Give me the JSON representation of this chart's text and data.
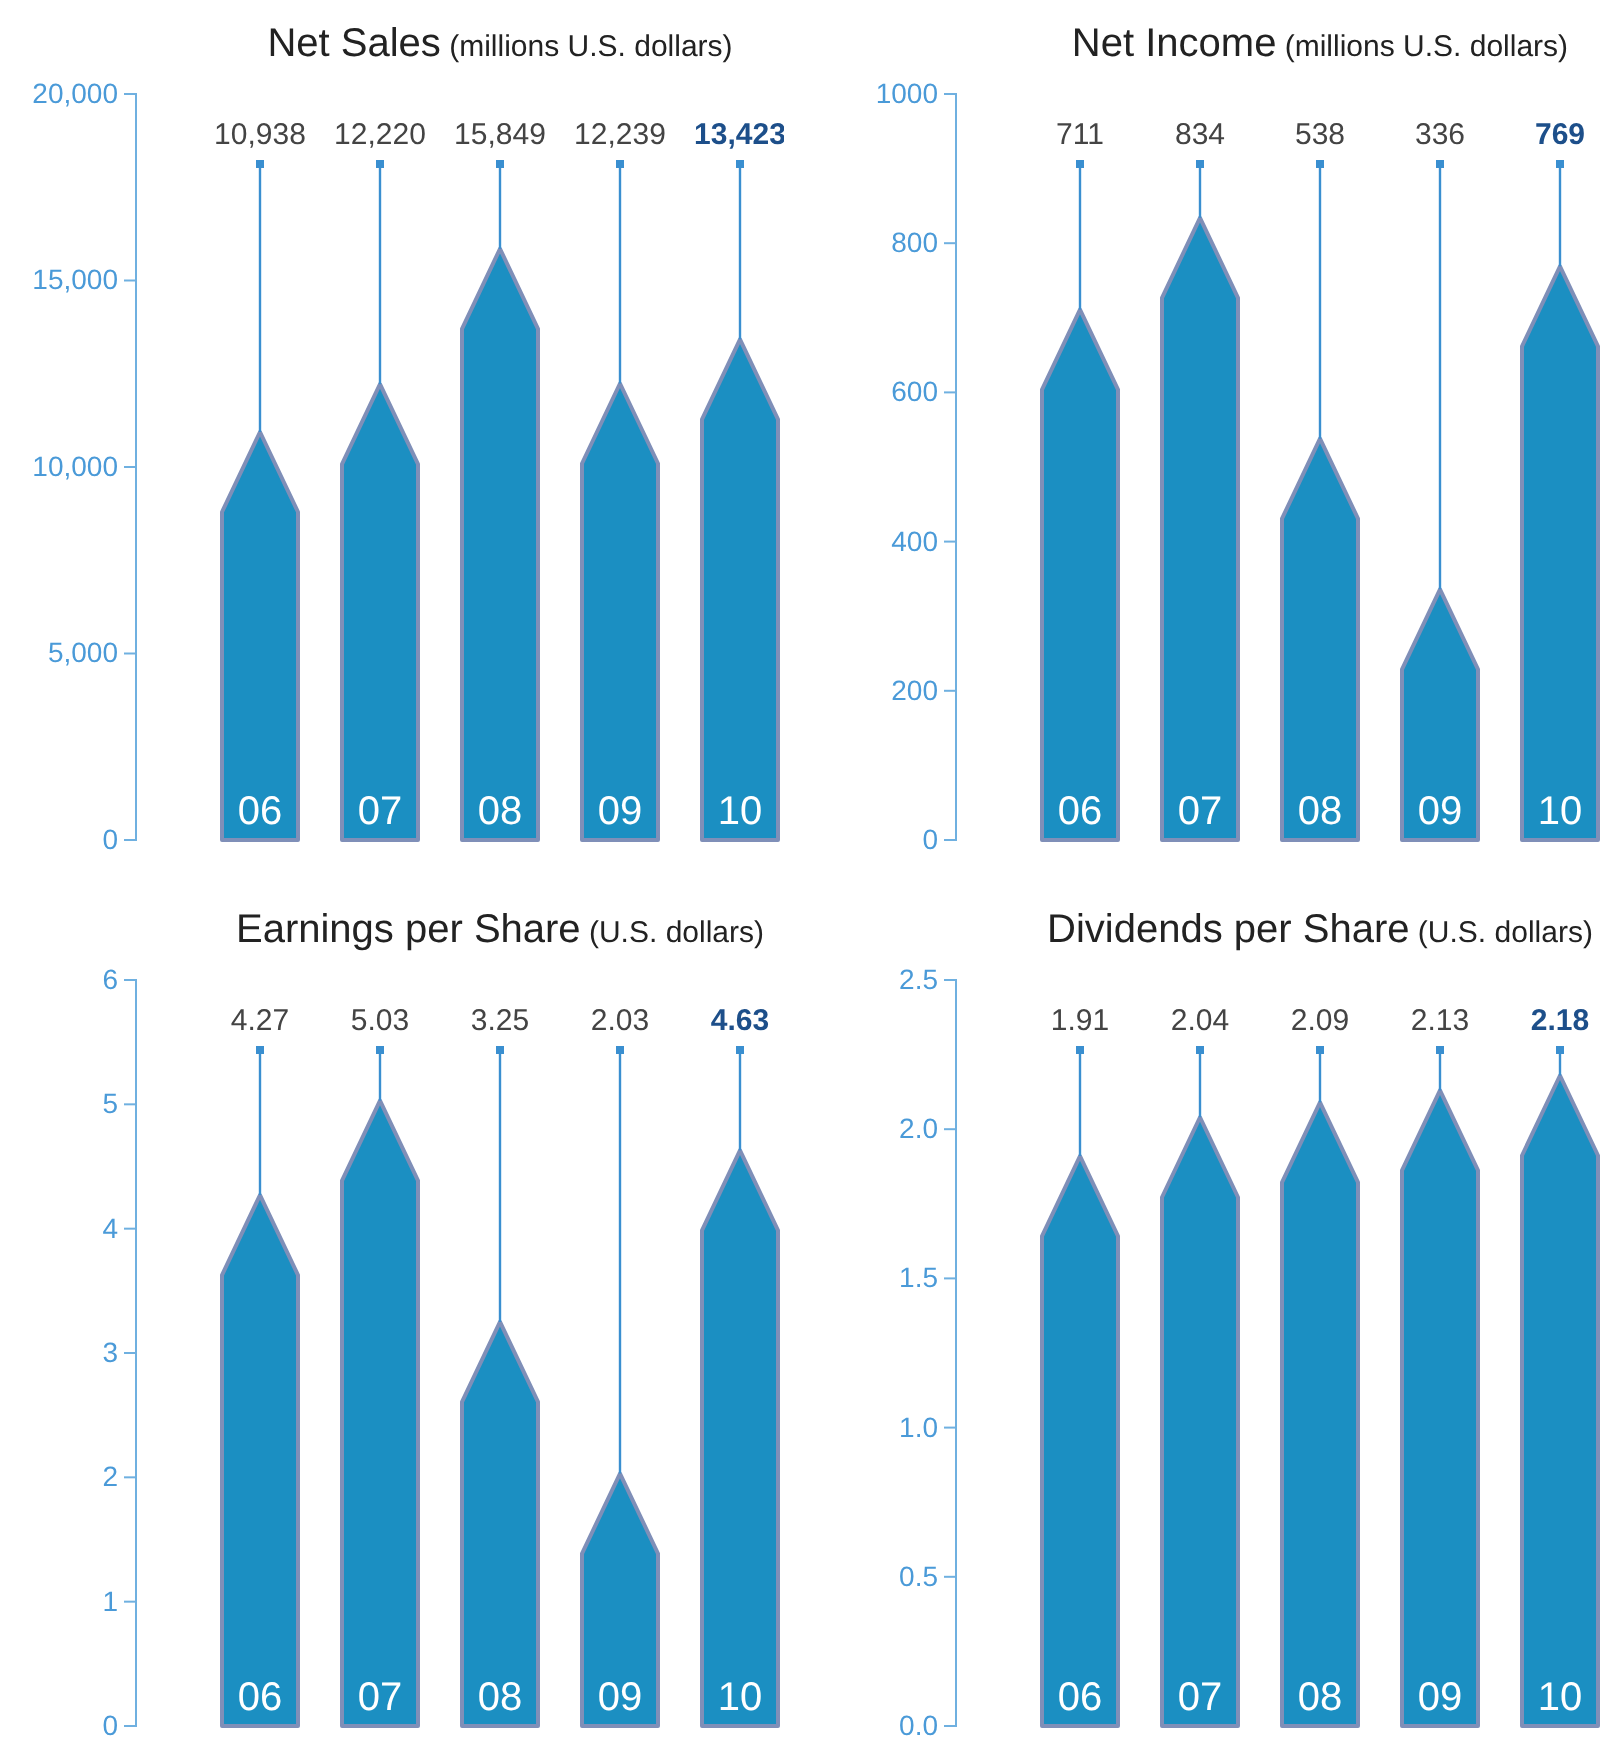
{
  "chart_data": [
    {
      "type": "bar",
      "title": "Net Sales",
      "subtitle": "(millions U.S. dollars)",
      "categories": [
        "06",
        "07",
        "08",
        "09",
        "10"
      ],
      "values": [
        10938,
        12220,
        15849,
        12239,
        13423
      ],
      "color": "#1b8fc2",
      "ylim": [
        0,
        20000
      ],
      "yticks": [
        {
          "value": 0,
          "label": "0"
        },
        {
          "value": 5000,
          "label": "5,000"
        },
        {
          "value": 10000,
          "label": "10,000"
        },
        {
          "value": 15000,
          "label": "15,000"
        },
        {
          "value": 20000,
          "label": "20,000"
        }
      ],
      "value_labels": [
        "10,938",
        "12,220",
        "15,849",
        "12,239",
        "13,423"
      ],
      "grid": false
    },
    {
      "type": "bar",
      "title": "Net Income",
      "subtitle": "(millions U.S. dollars)",
      "categories": [
        "06",
        "07",
        "08",
        "09",
        "10"
      ],
      "values": [
        711,
        834,
        538,
        336,
        769
      ],
      "color": "#1b8fc2",
      "ylim": [
        0,
        1000
      ],
      "yticks": [
        0,
        200,
        400,
        600,
        800,
        1000
      ],
      "value_labels": [
        "711",
        "834",
        "538",
        "336",
        "769"
      ],
      "grid": false
    },
    {
      "type": "bar",
      "title": "Earnings per Share",
      "subtitle": "(U.S. dollars)",
      "categories": [
        "06",
        "07",
        "08",
        "09",
        "10"
      ],
      "values": [
        4.27,
        5.03,
        3.25,
        2.03,
        4.63
      ],
      "color": "#1b8fc2",
      "ylim": [
        0,
        6
      ],
      "yticks": [
        0,
        1,
        2,
        3,
        4,
        5,
        6
      ],
      "value_labels": [
        "4.27",
        "5.03",
        "3.25",
        "2.03",
        "4.63"
      ],
      "grid": false
    },
    {
      "type": "bar",
      "title": "Dividends per Share",
      "subtitle": "(U.S. dollars)",
      "categories": [
        "06",
        "07",
        "08",
        "09",
        "10"
      ],
      "values": [
        1.91,
        2.04,
        2.09,
        2.13,
        2.18
      ],
      "color": "#1b8fc2",
      "ylim": [
        0,
        2.5
      ],
      "yticks": [
        {
          "value": 0,
          "label": "0.0"
        },
        {
          "value": 0.5,
          "label": "0.5"
        },
        {
          "value": 1,
          "label": "1.0"
        },
        {
          "value": 1.5,
          "label": "1.5"
        },
        {
          "value": 2,
          "label": "2.0"
        },
        {
          "value": 2.5,
          "label": "2.5"
        }
      ],
      "value_labels": [
        "1.91",
        "2.04",
        "2.09",
        "2.13",
        "2.18"
      ],
      "grid": false
    }
  ]
}
